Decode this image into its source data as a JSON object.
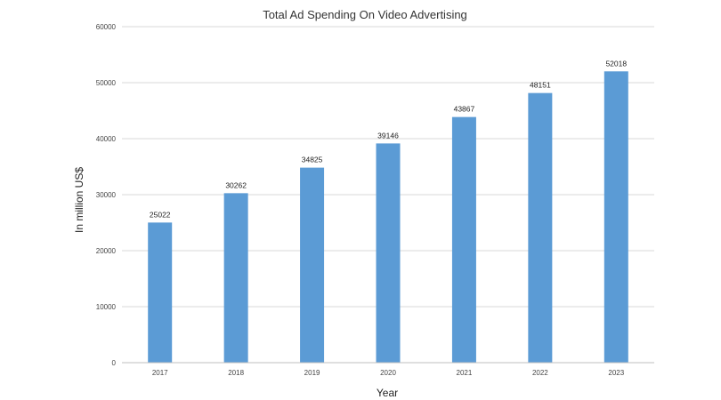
{
  "chart_data": {
    "type": "bar",
    "title": "Total Ad Spending On Video Advertising",
    "xlabel": "Year",
    "ylabel": "In million US$",
    "categories": [
      "2017",
      "2018",
      "2019",
      "2020",
      "2021",
      "2022",
      "2023"
    ],
    "values": [
      25022,
      30262,
      34825,
      39146,
      43867,
      48151,
      52018
    ],
    "ylim": [
      0,
      60000
    ],
    "yticks": [
      0,
      10000,
      20000,
      30000,
      40000,
      50000,
      60000
    ],
    "grid": true,
    "legend": "none",
    "bar_color": "#5b9bd5",
    "grid_color": "#d9d9d9",
    "axis_color": "#bfbfbf"
  }
}
